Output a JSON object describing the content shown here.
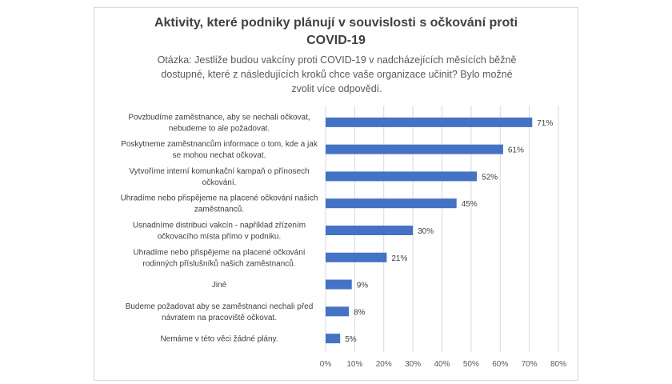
{
  "chart_data": {
    "type": "bar",
    "orientation": "horizontal",
    "title": [
      "Aktivity, které podniky plánují v souvislosti s očkování proti",
      "COVID-19"
    ],
    "subtitle": [
      "Otázka: Jestliže budou vakcíny proti COVID-19 v nadcházejících měsících běžně",
      "dostupné, které z následujících kroků chce vaše organizace učinit? Bylo možné",
      "zvolit více odpovědí."
    ],
    "categories": [
      [
        "Povzbudíme zaměstnance, aby se nechali očkovat,",
        "nebudeme to ale požadovat."
      ],
      [
        "Poskytneme zaměstnancům informace o tom, kde a jak",
        "se mohou nechat očkovat."
      ],
      [
        "Vytvoříme interní komunkační kampaň o přínosech",
        "očkování."
      ],
      [
        "Uhradíme nebo přispějeme  na placené očkování našich",
        "zaměstnanců."
      ],
      [
        "Usnadníme distribuci vakcín - například zřízením",
        "očkovacího místa přímo v podniku."
      ],
      [
        "Uhradíme nebo přispějeme na placené očkování",
        "rodinných příslušníků našich zaměstnanců."
      ],
      [
        "Jiné"
      ],
      [
        "Budeme požadovat aby se zaměstnanci nechali před",
        "návratem na pracoviště očkovat."
      ],
      [
        "Nemáme v této věci žádné plány."
      ]
    ],
    "values": [
      71,
      61,
      52,
      45,
      30,
      21,
      9,
      8,
      5
    ],
    "data_labels": [
      "71%",
      "61%",
      "52%",
      "45%",
      "30%",
      "21%",
      "9%",
      "8%",
      "5%"
    ],
    "xlim": [
      0,
      80
    ],
    "xticks": [
      "0%",
      "10%",
      "20%",
      "30%",
      "40%",
      "50%",
      "60%",
      "70%",
      "80%"
    ],
    "gridlines": true,
    "bar_color": "#4472c4",
    "grid_color": "#d9d9d9"
  }
}
